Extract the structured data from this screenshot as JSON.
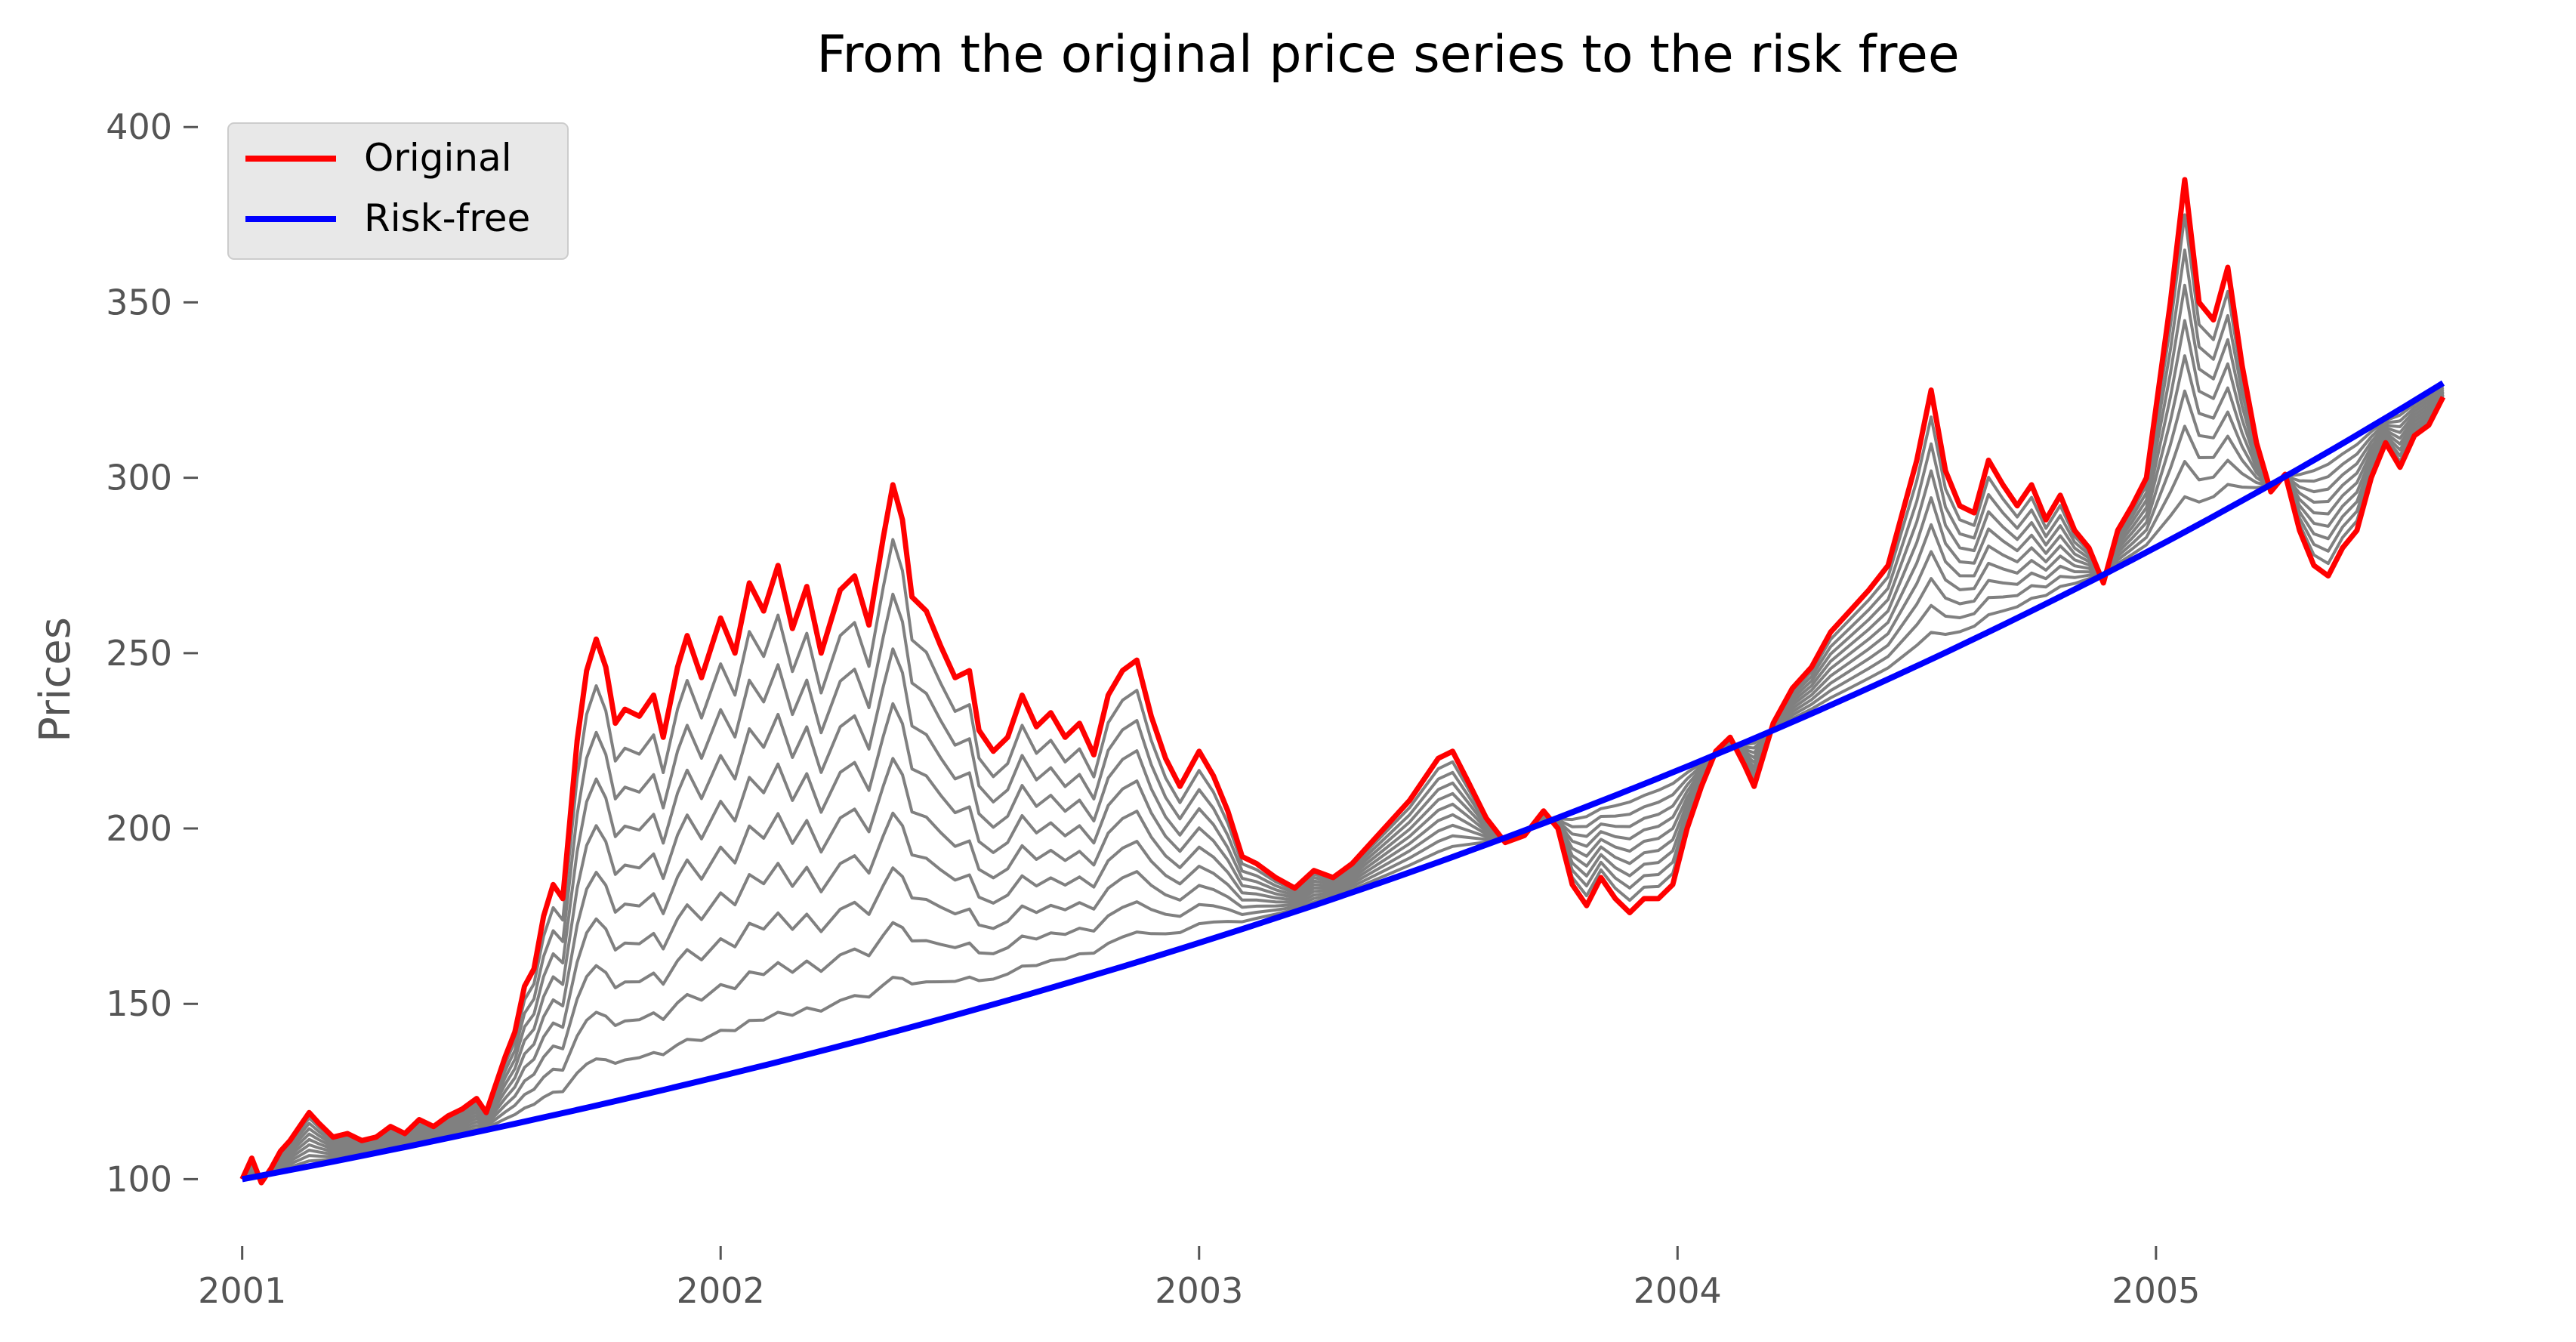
{
  "chart_data": {
    "type": "line",
    "title": "From the original price series to the risk free",
    "xlabel": "",
    "ylabel": "Prices",
    "xlim": [
      2000.92,
      2005.75
    ],
    "ylim": [
      82,
      405
    ],
    "x_ticks": [
      2001,
      2002,
      2003,
      2004,
      2005
    ],
    "x_tick_labels": [
      "2001",
      "2002",
      "2003",
      "2004",
      "2005"
    ],
    "y_ticks": [
      100,
      150,
      200,
      250,
      300,
      350,
      400
    ],
    "y_tick_labels": [
      "100",
      "150",
      "200",
      "250",
      "300",
      "350",
      "400"
    ],
    "grid": false,
    "legend": {
      "position": "top-left",
      "entries": [
        {
          "label": "Original",
          "color": "#ff0000"
        },
        {
          "label": "Risk-free",
          "color": "#0000ff"
        }
      ]
    },
    "blend_series_count": 9,
    "blend_color": "#808080",
    "series": [
      {
        "name": "Original",
        "color": "#ff0000",
        "points": [
          [
            2001.0,
            100
          ],
          [
            2001.02,
            106
          ],
          [
            2001.04,
            99
          ],
          [
            2001.06,
            103
          ],
          [
            2001.08,
            108
          ],
          [
            2001.1,
            111
          ],
          [
            2001.12,
            115
          ],
          [
            2001.14,
            119
          ],
          [
            2001.16,
            116
          ],
          [
            2001.19,
            112
          ],
          [
            2001.22,
            113
          ],
          [
            2001.25,
            111
          ],
          [
            2001.28,
            112
          ],
          [
            2001.31,
            115
          ],
          [
            2001.34,
            113
          ],
          [
            2001.37,
            117
          ],
          [
            2001.4,
            115
          ],
          [
            2001.43,
            118
          ],
          [
            2001.46,
            120
          ],
          [
            2001.49,
            123
          ],
          [
            2001.51,
            119
          ],
          [
            2001.53,
            127
          ],
          [
            2001.55,
            135
          ],
          [
            2001.57,
            142
          ],
          [
            2001.59,
            155
          ],
          [
            2001.61,
            160
          ],
          [
            2001.63,
            175
          ],
          [
            2001.65,
            184
          ],
          [
            2001.67,
            180
          ],
          [
            2001.7,
            225
          ],
          [
            2001.72,
            245
          ],
          [
            2001.74,
            254
          ],
          [
            2001.76,
            246
          ],
          [
            2001.78,
            230
          ],
          [
            2001.8,
            234
          ],
          [
            2001.83,
            232
          ],
          [
            2001.86,
            238
          ],
          [
            2001.88,
            226
          ],
          [
            2001.91,
            246
          ],
          [
            2001.93,
            255
          ],
          [
            2001.96,
            243
          ],
          [
            2002.0,
            260
          ],
          [
            2002.03,
            250
          ],
          [
            2002.06,
            270
          ],
          [
            2002.09,
            262
          ],
          [
            2002.12,
            275
          ],
          [
            2002.15,
            257
          ],
          [
            2002.18,
            269
          ],
          [
            2002.21,
            250
          ],
          [
            2002.25,
            268
          ],
          [
            2002.28,
            272
          ],
          [
            2002.31,
            258
          ],
          [
            2002.34,
            283
          ],
          [
            2002.36,
            298
          ],
          [
            2002.38,
            288
          ],
          [
            2002.4,
            266
          ],
          [
            2002.43,
            262
          ],
          [
            2002.46,
            252
          ],
          [
            2002.49,
            243
          ],
          [
            2002.52,
            245
          ],
          [
            2002.54,
            228
          ],
          [
            2002.57,
            222
          ],
          [
            2002.6,
            226
          ],
          [
            2002.63,
            238
          ],
          [
            2002.66,
            229
          ],
          [
            2002.69,
            233
          ],
          [
            2002.72,
            226
          ],
          [
            2002.75,
            230
          ],
          [
            2002.78,
            221
          ],
          [
            2002.81,
            238
          ],
          [
            2002.84,
            245
          ],
          [
            2002.87,
            248
          ],
          [
            2002.9,
            232
          ],
          [
            2002.93,
            220
          ],
          [
            2002.96,
            212
          ],
          [
            2003.0,
            222
          ],
          [
            2003.03,
            215
          ],
          [
            2003.06,
            205
          ],
          [
            2003.09,
            192
          ],
          [
            2003.12,
            190
          ],
          [
            2003.16,
            186
          ],
          [
            2003.2,
            183
          ],
          [
            2003.24,
            188
          ],
          [
            2003.28,
            186
          ],
          [
            2003.32,
            190
          ],
          [
            2003.36,
            196
          ],
          [
            2003.4,
            202
          ],
          [
            2003.44,
            208
          ],
          [
            2003.47,
            214
          ],
          [
            2003.5,
            220
          ],
          [
            2003.53,
            222
          ],
          [
            2003.56,
            214
          ],
          [
            2003.6,
            203
          ],
          [
            2003.64,
            196
          ],
          [
            2003.68,
            198
          ],
          [
            2003.72,
            205
          ],
          [
            2003.75,
            200
          ],
          [
            2003.78,
            184
          ],
          [
            2003.81,
            178
          ],
          [
            2003.84,
            186
          ],
          [
            2003.87,
            180
          ],
          [
            2003.9,
            176
          ],
          [
            2003.93,
            180
          ],
          [
            2003.96,
            180
          ],
          [
            2003.99,
            184
          ],
          [
            2004.02,
            200
          ],
          [
            2004.05,
            212
          ],
          [
            2004.08,
            222
          ],
          [
            2004.11,
            226
          ],
          [
            2004.14,
            218
          ],
          [
            2004.16,
            212
          ],
          [
            2004.2,
            230
          ],
          [
            2004.24,
            240
          ],
          [
            2004.28,
            246
          ],
          [
            2004.32,
            256
          ],
          [
            2004.36,
            262
          ],
          [
            2004.4,
            268
          ],
          [
            2004.44,
            275
          ],
          [
            2004.47,
            290
          ],
          [
            2004.5,
            305
          ],
          [
            2004.53,
            325
          ],
          [
            2004.56,
            302
          ],
          [
            2004.59,
            292
          ],
          [
            2004.62,
            290
          ],
          [
            2004.65,
            305
          ],
          [
            2004.68,
            298
          ],
          [
            2004.71,
            292
          ],
          [
            2004.74,
            298
          ],
          [
            2004.77,
            288
          ],
          [
            2004.8,
            295
          ],
          [
            2004.83,
            285
          ],
          [
            2004.86,
            280
          ],
          [
            2004.89,
            270
          ],
          [
            2004.92,
            285
          ],
          [
            2004.95,
            292
          ],
          [
            2004.98,
            300
          ],
          [
            2005.01,
            330
          ],
          [
            2005.03,
            350
          ],
          [
            2005.06,
            385
          ],
          [
            2005.09,
            350
          ],
          [
            2005.12,
            345
          ],
          [
            2005.15,
            360
          ],
          [
            2005.18,
            332
          ],
          [
            2005.21,
            310
          ],
          [
            2005.24,
            296
          ],
          [
            2005.27,
            301
          ],
          [
            2005.3,
            285
          ],
          [
            2005.33,
            275
          ],
          [
            2005.36,
            272
          ],
          [
            2005.39,
            280
          ],
          [
            2005.42,
            285
          ],
          [
            2005.45,
            300
          ],
          [
            2005.48,
            310
          ],
          [
            2005.51,
            303
          ],
          [
            2005.54,
            312
          ],
          [
            2005.57,
            315
          ],
          [
            2005.6,
            323
          ]
        ]
      },
      {
        "name": "Risk-free",
        "color": "#0000ff",
        "start": [
          2001.0,
          100
        ],
        "end": [
          2005.6,
          327
        ]
      }
    ]
  }
}
